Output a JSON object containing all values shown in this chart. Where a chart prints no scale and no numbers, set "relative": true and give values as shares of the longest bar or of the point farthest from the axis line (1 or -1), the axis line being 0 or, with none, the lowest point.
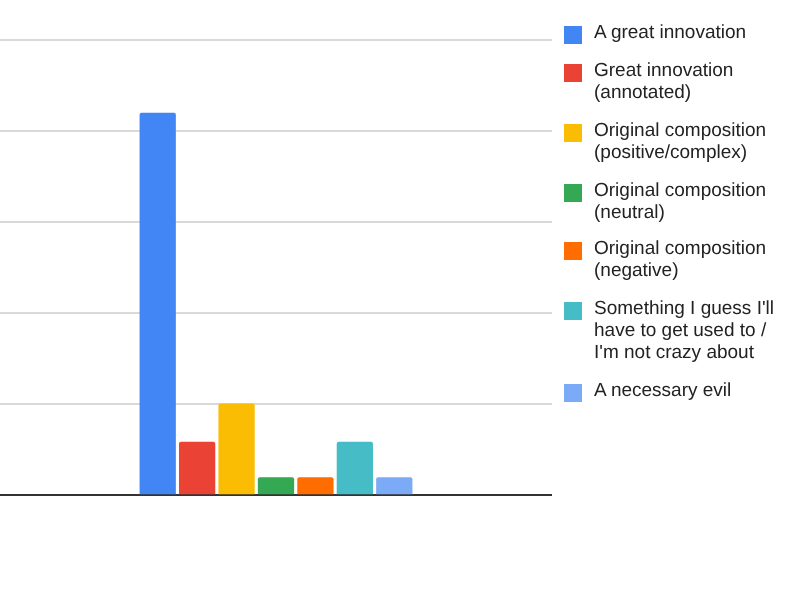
{
  "chart_data": {
    "type": "bar",
    "relative": true,
    "grid": "y",
    "legend": "right",
    "categories": [
      null
    ],
    "series": [
      {
        "name": "A great innovation",
        "color": "#4285f4",
        "values": [
          1
        ]
      },
      {
        "name": "Great innovation (annotated)",
        "color": "#ea4335",
        "values": [
          0.14
        ]
      },
      {
        "name": "Original composition (positive/complex)",
        "color": "#fbbc04",
        "values": [
          0.24
        ]
      },
      {
        "name": "Original composition (neutral)",
        "color": "#34a853",
        "values": [
          0.047
        ]
      },
      {
        "name": "Original composition (negative)",
        "color": "#ff6d01",
        "values": [
          0.047
        ]
      },
      {
        "name": "Something I guess I'll have to get used to / I'm not crazy about",
        "color": "#46bdc6",
        "values": [
          0.14
        ]
      },
      {
        "name": "A necessary evil",
        "color": "#7baaf7",
        "values": [
          0.047
        ]
      }
    ]
  }
}
